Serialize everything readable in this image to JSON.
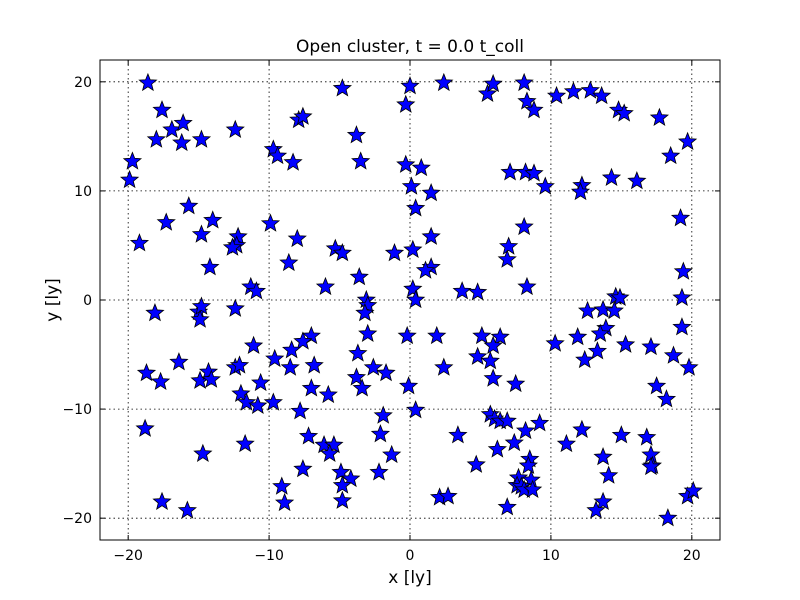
{
  "chart_data": {
    "type": "scatter",
    "title": "Open cluster, t = 0.0 t_coll",
    "xlabel": "x [ly]",
    "ylabel": "y [ly]",
    "xlim": [
      -22,
      22
    ],
    "ylim": [
      -22,
      22
    ],
    "xticks": [
      -20,
      -10,
      0,
      10,
      20
    ],
    "yticks": [
      -20,
      -10,
      0,
      10,
      20
    ],
    "xtick_labels": [
      "−20",
      "−10",
      "0",
      "10",
      "20"
    ],
    "ytick_labels": [
      "−20",
      "−10",
      "0",
      "10",
      "20"
    ],
    "grid": true,
    "marker": "star",
    "marker_color": "#0000ff",
    "points": [
      [
        -18.6,
        19.9
      ],
      [
        -17.6,
        17.4
      ],
      [
        -16.9,
        15.6
      ],
      [
        -16.1,
        16.2
      ],
      [
        -18.0,
        14.7
      ],
      [
        -16.2,
        14.4
      ],
      [
        -14.8,
        14.7
      ],
      [
        -12.4,
        15.6
      ],
      [
        -19.7,
        12.7
      ],
      [
        -19.9,
        11.0
      ],
      [
        -15.7,
        8.6
      ],
      [
        -17.3,
        7.1
      ],
      [
        -19.2,
        5.2
      ],
      [
        -14.0,
        7.3
      ],
      [
        -14.8,
        6.0
      ],
      [
        -12.2,
        5.8
      ],
      [
        -12.3,
        5.0
      ],
      [
        -12.6,
        4.8
      ],
      [
        -14.2,
        3.0
      ],
      [
        -18.1,
        -1.2
      ],
      [
        -15.0,
        -1.1
      ],
      [
        -14.8,
        -0.6
      ],
      [
        -14.9,
        -1.8
      ],
      [
        -11.3,
        1.2
      ],
      [
        -10.9,
        0.8
      ],
      [
        -12.4,
        -0.8
      ],
      [
        -16.4,
        -5.7
      ],
      [
        -18.7,
        -6.7
      ],
      [
        -17.7,
        -7.5
      ],
      [
        -14.9,
        -7.4
      ],
      [
        -14.3,
        -6.6
      ],
      [
        -14.1,
        -7.3
      ],
      [
        -12.4,
        -6.2
      ],
      [
        -12.1,
        -6.0
      ],
      [
        -11.1,
        -4.2
      ],
      [
        -10.6,
        -7.6
      ],
      [
        -9.6,
        -5.4
      ],
      [
        -12.0,
        -8.6
      ],
      [
        -11.6,
        -9.4
      ],
      [
        -10.8,
        -9.7
      ],
      [
        -9.7,
        -9.4
      ],
      [
        -18.8,
        -11.8
      ],
      [
        -14.7,
        -14.1
      ],
      [
        -11.7,
        -13.2
      ],
      [
        -17.6,
        -18.5
      ],
      [
        -15.8,
        -19.3
      ],
      [
        -9.7,
        13.8
      ],
      [
        -9.4,
        13.2
      ],
      [
        -8.3,
        12.6
      ],
      [
        -7.9,
        16.5
      ],
      [
        -7.6,
        16.8
      ],
      [
        -4.8,
        19.4
      ],
      [
        -3.8,
        15.1
      ],
      [
        -3.5,
        12.7
      ],
      [
        -9.9,
        7.0
      ],
      [
        -8.0,
        5.6
      ],
      [
        -8.6,
        3.4
      ],
      [
        -6.0,
        1.2
      ],
      [
        -5.3,
        4.7
      ],
      [
        -4.8,
        4.3
      ],
      [
        -3.6,
        2.1
      ],
      [
        -3.1,
        0.0
      ],
      [
        -3.0,
        -0.5
      ],
      [
        -3.2,
        -1.2
      ],
      [
        -3.0,
        -3.1
      ],
      [
        -7.0,
        -3.3
      ],
      [
        -7.6,
        -3.8
      ],
      [
        -8.4,
        -4.6
      ],
      [
        -8.5,
        -6.2
      ],
      [
        -6.8,
        -6.0
      ],
      [
        -3.7,
        -4.9
      ],
      [
        -2.6,
        -6.2
      ],
      [
        -1.7,
        -6.7
      ],
      [
        -3.8,
        -7.1
      ],
      [
        -3.4,
        -8.1
      ],
      [
        -7.0,
        -8.1
      ],
      [
        -5.8,
        -8.7
      ],
      [
        -7.8,
        -10.2
      ],
      [
        -1.9,
        -10.6
      ],
      [
        -7.2,
        -12.5
      ],
      [
        -6.1,
        -13.3
      ],
      [
        -5.4,
        -13.3
      ],
      [
        -5.7,
        -14.1
      ],
      [
        -2.1,
        -12.3
      ],
      [
        -1.3,
        -14.2
      ],
      [
        -7.6,
        -15.5
      ],
      [
        -4.9,
        -15.8
      ],
      [
        -4.2,
        -16.4
      ],
      [
        -4.8,
        -17.0
      ],
      [
        -2.2,
        -15.8
      ],
      [
        -9.1,
        -17.1
      ],
      [
        -8.9,
        -18.6
      ],
      [
        -4.8,
        -18.4
      ],
      [
        -0.3,
        17.9
      ],
      [
        0.0,
        19.6
      ],
      [
        2.4,
        19.9
      ],
      [
        -0.3,
        12.4
      ],
      [
        0.8,
        12.1
      ],
      [
        1.5,
        9.8
      ],
      [
        0.1,
        10.4
      ],
      [
        0.4,
        8.4
      ],
      [
        -1.1,
        4.3
      ],
      [
        0.2,
        4.6
      ],
      [
        1.5,
        3.0
      ],
      [
        1.1,
        2.7
      ],
      [
        1.5,
        5.8
      ],
      [
        0.2,
        1.0
      ],
      [
        0.4,
        0.0
      ],
      [
        3.7,
        0.8
      ],
      [
        4.8,
        0.7
      ],
      [
        -0.2,
        -3.3
      ],
      [
        1.9,
        -3.3
      ],
      [
        -0.1,
        -7.9
      ],
      [
        2.4,
        -6.2
      ],
      [
        0.4,
        -10.1
      ],
      [
        3.4,
        -12.4
      ],
      [
        4.7,
        -15.1
      ],
      [
        2.1,
        -18.1
      ],
      [
        2.7,
        -18.0
      ],
      [
        5.5,
        18.9
      ],
      [
        5.9,
        19.8
      ],
      [
        8.1,
        19.9
      ],
      [
        8.3,
        18.2
      ],
      [
        8.8,
        17.4
      ],
      [
        7.1,
        11.7
      ],
      [
        8.2,
        11.7
      ],
      [
        8.8,
        11.6
      ],
      [
        9.6,
        10.4
      ],
      [
        7.0,
        4.9
      ],
      [
        6.9,
        3.7
      ],
      [
        8.1,
        6.7
      ],
      [
        8.3,
        1.2
      ],
      [
        5.1,
        -3.3
      ],
      [
        6.4,
        -3.4
      ],
      [
        5.9,
        -4.2
      ],
      [
        4.8,
        -5.2
      ],
      [
        5.7,
        -5.6
      ],
      [
        5.9,
        -7.2
      ],
      [
        7.5,
        -7.7
      ],
      [
        5.7,
        -10.5
      ],
      [
        6.0,
        -10.9
      ],
      [
        6.4,
        -11.1
      ],
      [
        6.9,
        -11.1
      ],
      [
        9.2,
        -11.3
      ],
      [
        8.2,
        -12.0
      ],
      [
        6.2,
        -13.7
      ],
      [
        7.4,
        -13.1
      ],
      [
        8.5,
        -14.6
      ],
      [
        8.4,
        -15.2
      ],
      [
        7.7,
        -16.3
      ],
      [
        8.6,
        -16.5
      ],
      [
        7.6,
        -17.0
      ],
      [
        7.9,
        -17.1
      ],
      [
        8.1,
        -17.4
      ],
      [
        8.7,
        -17.4
      ],
      [
        6.9,
        -19.0
      ],
      [
        10.4,
        18.7
      ],
      [
        11.6,
        19.1
      ],
      [
        12.8,
        19.2
      ],
      [
        13.6,
        18.7
      ],
      [
        14.8,
        17.4
      ],
      [
        15.2,
        17.1
      ],
      [
        17.7,
        16.7
      ],
      [
        18.5,
        13.2
      ],
      [
        19.7,
        14.5
      ],
      [
        12.2,
        10.5
      ],
      [
        12.1,
        9.9
      ],
      [
        14.3,
        11.2
      ],
      [
        16.1,
        10.9
      ],
      [
        19.2,
        7.5
      ],
      [
        19.4,
        2.6
      ],
      [
        19.3,
        0.2
      ],
      [
        14.6,
        0.3
      ],
      [
        14.9,
        0.2
      ],
      [
        12.6,
        -1.0
      ],
      [
        13.7,
        -0.9
      ],
      [
        14.5,
        -1.0
      ],
      [
        13.9,
        -2.6
      ],
      [
        13.5,
        -3.1
      ],
      [
        11.9,
        -3.4
      ],
      [
        10.3,
        -4.0
      ],
      [
        13.3,
        -4.7
      ],
      [
        12.4,
        -5.5
      ],
      [
        15.3,
        -4.1
      ],
      [
        17.1,
        -4.3
      ],
      [
        18.7,
        -5.1
      ],
      [
        19.3,
        -2.5
      ],
      [
        19.8,
        -6.2
      ],
      [
        17.5,
        -7.9
      ],
      [
        18.2,
        -9.1
      ],
      [
        12.2,
        -11.9
      ],
      [
        11.1,
        -13.2
      ],
      [
        15.0,
        -12.4
      ],
      [
        16.8,
        -12.6
      ],
      [
        13.7,
        -14.4
      ],
      [
        17.1,
        -14.2
      ],
      [
        17.2,
        -15.2
      ],
      [
        17.1,
        -15.3
      ],
      [
        14.1,
        -16.1
      ],
      [
        13.7,
        -18.5
      ],
      [
        13.2,
        -19.3
      ],
      [
        18.3,
        -20.0
      ],
      [
        19.7,
        -18.0
      ],
      [
        20.1,
        -17.5
      ]
    ]
  }
}
